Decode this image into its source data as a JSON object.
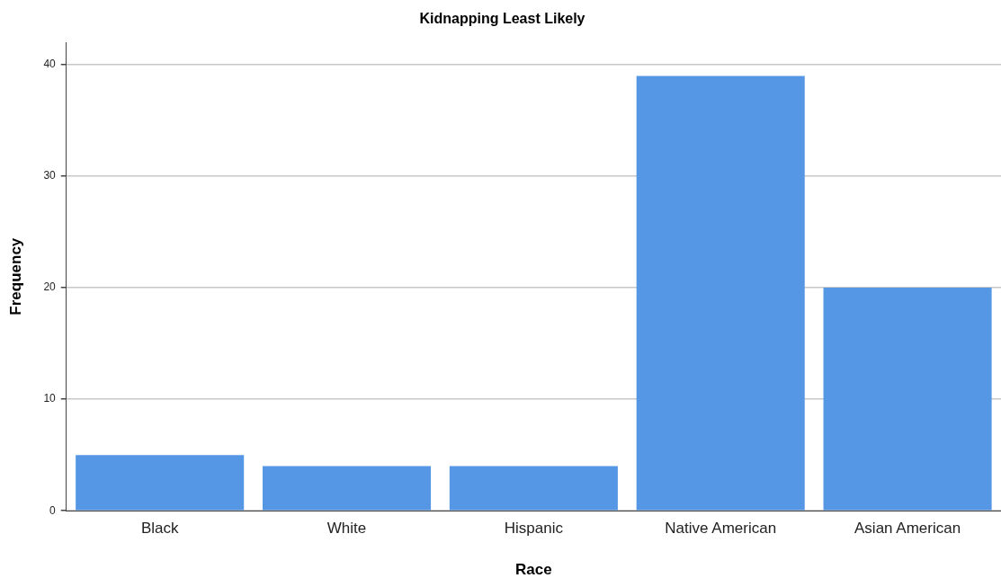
{
  "chart_data": {
    "type": "bar",
    "title": "Kidnapping Least Likely",
    "xlabel": "Race",
    "ylabel": "Frequency",
    "categories": [
      "Black",
      "White",
      "Hispanic",
      "Native American",
      "Asian American"
    ],
    "values": [
      5,
      4,
      4,
      39,
      20
    ],
    "color": "#5596e5",
    "ylim": [
      0,
      42
    ],
    "yticks": [
      0,
      10,
      20,
      30,
      40
    ],
    "grid": "y"
  }
}
